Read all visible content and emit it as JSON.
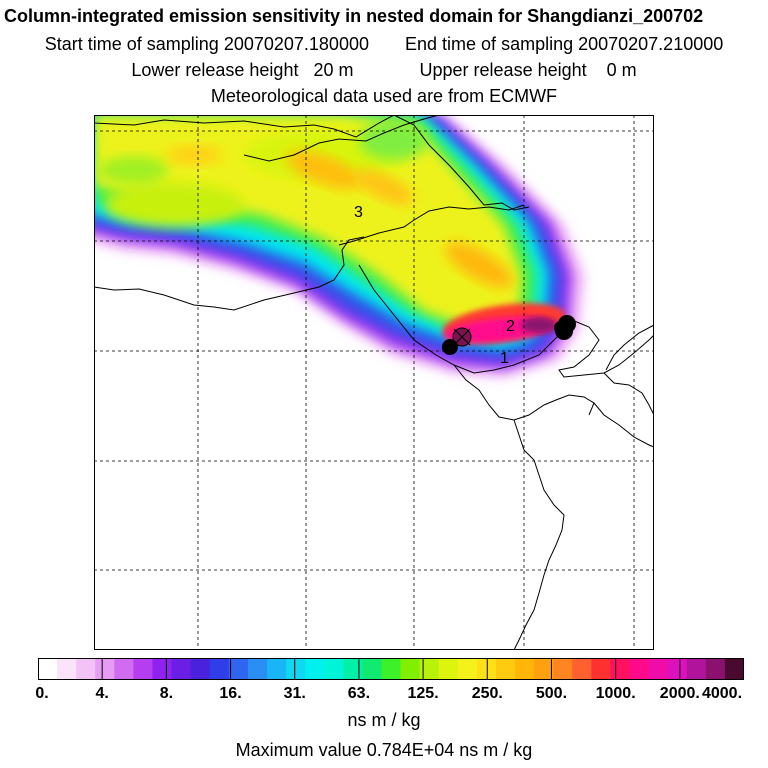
{
  "header": {
    "title": "Column-integrated emission sensitivity in nested domain for Shangdianzi_200702",
    "start_label": "Start time of sampling 20070207.180000",
    "end_label": "End time of sampling 20070207.210000",
    "lower_label": "Lower release height   20 m",
    "upper_label": "Upper release height    0 m",
    "met_label": "Meteorological data used are from ECMWF"
  },
  "map": {
    "labels": [
      "3",
      "2",
      "1"
    ]
  },
  "colorbar": {
    "ticks": [
      "0.",
      "4.",
      "8.",
      "16.",
      "31.",
      "63.",
      "125.",
      "250.",
      "500.",
      "1000.",
      "2000.",
      "4000."
    ],
    "colors": [
      "#ffffff",
      "#fbe3fb",
      "#f3c3f7",
      "#e69cf3",
      "#cf6cf0",
      "#b53ef0",
      "#8f22ee",
      "#6a1ee6",
      "#4a22dd",
      "#2f3ee8",
      "#2f66f0",
      "#2a8ef5",
      "#18b6f5",
      "#10d8f0",
      "#00f0ee",
      "#00f5d8",
      "#00f0a8",
      "#10ea70",
      "#3cf02a",
      "#80f000",
      "#b8f20a",
      "#dcf40e",
      "#f4f21a",
      "#fde018",
      "#ffcb10",
      "#ffb608",
      "#ffa010",
      "#ff8520",
      "#ff6030",
      "#ff3030",
      "#ff1060",
      "#ff0a8a",
      "#f00ca8",
      "#dc10bc",
      "#b0149c",
      "#8a126e",
      "#4a0a30"
    ],
    "units": "ns m / kg",
    "max_value": "Maximum value  0.784E+04 ns m / kg"
  }
}
